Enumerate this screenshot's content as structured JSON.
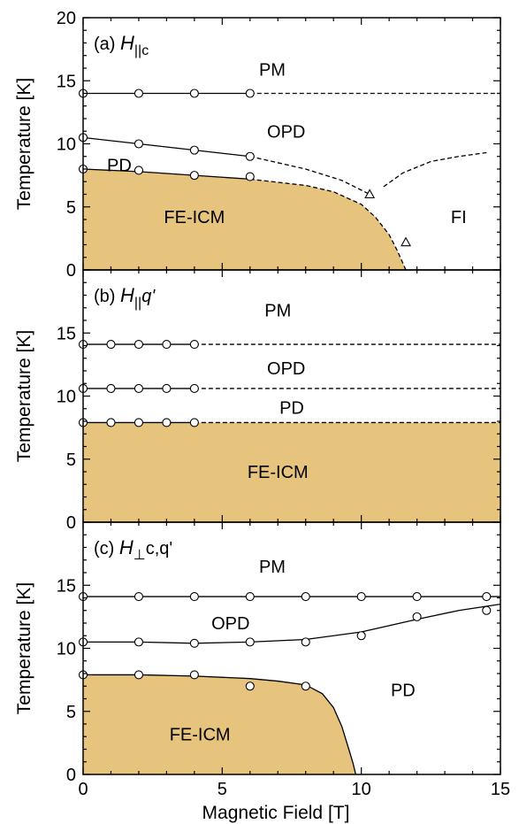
{
  "chart_data": {
    "type": "line",
    "xlabel": "Magnetic Field [T]",
    "x_ticks": [
      "0",
      "5",
      "10",
      "15"
    ],
    "xlim": [
      0,
      15
    ],
    "fill_color": "#e6c47e",
    "panels": [
      {
        "label_prefix": "(a) ",
        "label_italic": "H",
        "label_sub": "||c",
        "label_after": "",
        "ylabel": "Temperature [K]",
        "ylim": [
          0,
          20
        ],
        "y_ticks": [
          "0",
          "5",
          "10",
          "15",
          "20"
        ],
        "regions": [
          {
            "text": "PM",
            "x": 6.8,
            "y": 15.9
          },
          {
            "text": "OPD",
            "x": 7.3,
            "y": 11.0
          },
          {
            "text": "PD",
            "x": 1.3,
            "y": 8.3
          },
          {
            "text": "FE-ICM",
            "x": 4.0,
            "y": 4.2
          },
          {
            "text": "FI",
            "x": 13.5,
            "y": 4.2
          }
        ],
        "fill_boundary": [
          [
            0,
            8.0
          ],
          [
            2,
            7.8
          ],
          [
            4,
            7.5
          ],
          [
            6,
            7.2
          ],
          [
            8,
            6.7
          ],
          [
            9,
            6.2
          ],
          [
            10,
            5.2
          ],
          [
            10.5,
            4.2
          ],
          [
            11,
            2.8
          ],
          [
            11.3,
            1.5
          ],
          [
            11.6,
            0
          ]
        ],
        "lines": [
          {
            "name": "pm-opd-solid",
            "dash": false,
            "points": [
              [
                0,
                14
              ],
              [
                6,
                14
              ]
            ]
          },
          {
            "name": "pm-opd-dashed",
            "dash": true,
            "points": [
              [
                6,
                14
              ],
              [
                15,
                14
              ]
            ]
          },
          {
            "name": "opd-pd-solid",
            "dash": false,
            "points": [
              [
                0,
                10.5
              ],
              [
                2,
                10.0
              ],
              [
                4,
                9.5
              ],
              [
                6,
                9.0
              ]
            ]
          },
          {
            "name": "opd-pd-dashed",
            "dash": true,
            "points": [
              [
                6,
                9.0
              ],
              [
                8,
                8.0
              ],
              [
                9.3,
                7.1
              ],
              [
                10.3,
                6.0
              ]
            ]
          },
          {
            "name": "pd-fe-solid",
            "dash": false,
            "points": [
              [
                0,
                8.0
              ],
              [
                2,
                7.8
              ],
              [
                4,
                7.5
              ],
              [
                6,
                7.2
              ]
            ]
          },
          {
            "name": "pd-fe-dashed",
            "dash": true,
            "points": [
              [
                6,
                7.2
              ],
              [
                8,
                6.7
              ],
              [
                9,
                6.2
              ],
              [
                10,
                5.2
              ],
              [
                10.5,
                4.2
              ],
              [
                11,
                2.8
              ],
              [
                11.3,
                1.5
              ],
              [
                11.6,
                0
              ]
            ]
          },
          {
            "name": "fi-upper-dashed",
            "dash": true,
            "points": [
              [
                10.8,
                6.6
              ],
              [
                11.5,
                7.7
              ],
              [
                12.5,
                8.6
              ],
              [
                13.5,
                9.0
              ],
              [
                14.5,
                9.3
              ]
            ]
          }
        ],
        "circles": [
          [
            0,
            14
          ],
          [
            2,
            14
          ],
          [
            4,
            14
          ],
          [
            6,
            14
          ],
          [
            0,
            10.5
          ],
          [
            2,
            10.0
          ],
          [
            4,
            9.5
          ],
          [
            6,
            9.0
          ],
          [
            0,
            8.0
          ],
          [
            2,
            7.9
          ],
          [
            4,
            7.5
          ],
          [
            6,
            7.4
          ]
        ],
        "triangles": [
          [
            10.3,
            6.0
          ],
          [
            11.6,
            2.2
          ]
        ]
      },
      {
        "label_prefix": "(b) ",
        "label_italic": "H",
        "label_sub": "||",
        "label_after": "q'",
        "ylabel": "Temperature [K]",
        "ylim": [
          0,
          20
        ],
        "y_ticks": [
          "0",
          "5",
          "10",
          "15"
        ],
        "regions": [
          {
            "text": "PM",
            "x": 7.0,
            "y": 16.8
          },
          {
            "text": "OPD",
            "x": 7.3,
            "y": 12.2
          },
          {
            "text": "PD",
            "x": 7.5,
            "y": 9.1
          },
          {
            "text": "FE-ICM",
            "x": 7.0,
            "y": 4.0
          }
        ],
        "fill_boundary": [
          [
            0,
            7.9
          ],
          [
            15,
            7.9
          ]
        ],
        "lines": [
          {
            "name": "pm-opd-solid",
            "dash": false,
            "points": [
              [
                0,
                14.1
              ],
              [
                4,
                14.1
              ]
            ]
          },
          {
            "name": "pm-opd-dashed",
            "dash": true,
            "points": [
              [
                4,
                14.1
              ],
              [
                15,
                14.1
              ]
            ]
          },
          {
            "name": "opd-pd-solid",
            "dash": false,
            "points": [
              [
                0,
                10.6
              ],
              [
                4,
                10.6
              ]
            ]
          },
          {
            "name": "opd-pd-dashed",
            "dash": true,
            "points": [
              [
                4,
                10.6
              ],
              [
                15,
                10.6
              ]
            ]
          },
          {
            "name": "pd-fe-solid",
            "dash": false,
            "points": [
              [
                0,
                7.9
              ],
              [
                4,
                7.9
              ]
            ]
          },
          {
            "name": "pd-fe-dashed",
            "dash": true,
            "points": [
              [
                4,
                7.9
              ],
              [
                15,
                7.9
              ]
            ]
          }
        ],
        "circles": [
          [
            0,
            14.1
          ],
          [
            1,
            14.1
          ],
          [
            2,
            14.1
          ],
          [
            3,
            14.1
          ],
          [
            4,
            14.1
          ],
          [
            0,
            10.6
          ],
          [
            1,
            10.6
          ],
          [
            2,
            10.6
          ],
          [
            3,
            10.6
          ],
          [
            4,
            10.6
          ],
          [
            0,
            7.9
          ],
          [
            1,
            7.9
          ],
          [
            2,
            7.9
          ],
          [
            3,
            7.9
          ],
          [
            4,
            7.9
          ]
        ],
        "triangles": []
      },
      {
        "label_prefix": "(c) ",
        "label_italic": "H",
        "label_sub": "⊥",
        "label_after": "c,q'",
        "ylabel": "Temperature [K]",
        "ylim": [
          0,
          20
        ],
        "y_ticks": [
          "0",
          "5",
          "10",
          "15"
        ],
        "regions": [
          {
            "text": "PM",
            "x": 6.8,
            "y": 16.5
          },
          {
            "text": "OPD",
            "x": 5.3,
            "y": 12.0
          },
          {
            "text": "PD",
            "x": 11.5,
            "y": 6.7
          },
          {
            "text": "FE-ICM",
            "x": 4.2,
            "y": 3.2
          }
        ],
        "fill_boundary": [
          [
            0,
            7.9
          ],
          [
            2,
            7.9
          ],
          [
            4,
            7.8
          ],
          [
            6,
            7.6
          ],
          [
            7,
            7.4
          ],
          [
            8,
            7.1
          ],
          [
            8.6,
            6.4
          ],
          [
            9.0,
            5.3
          ],
          [
            9.3,
            3.8
          ],
          [
            9.55,
            2.0
          ],
          [
            9.7,
            0.9
          ],
          [
            9.8,
            0
          ]
        ],
        "lines": [
          {
            "name": "pm-opd-solid",
            "dash": false,
            "points": [
              [
                0,
                14.1
              ],
              [
                15,
                14.1
              ]
            ]
          },
          {
            "name": "opd-pd-solid",
            "dash": false,
            "points": [
              [
                0,
                10.5
              ],
              [
                2,
                10.5
              ],
              [
                4,
                10.4
              ],
              [
                6,
                10.5
              ],
              [
                8,
                10.7
              ],
              [
                10,
                11.3
              ],
              [
                12,
                12.3
              ],
              [
                13.5,
                13.0
              ],
              [
                15,
                13.5
              ]
            ]
          },
          {
            "name": "pd-fe-solid",
            "dash": false,
            "points": [
              [
                0,
                7.9
              ],
              [
                2,
                7.9
              ],
              [
                4,
                7.8
              ],
              [
                6,
                7.6
              ],
              [
                7,
                7.4
              ],
              [
                8,
                7.1
              ],
              [
                8.6,
                6.4
              ],
              [
                9.0,
                5.3
              ],
              [
                9.3,
                3.8
              ],
              [
                9.55,
                2.0
              ],
              [
                9.7,
                0.9
              ],
              [
                9.8,
                0
              ]
            ]
          }
        ],
        "circles": [
          [
            0,
            14.1
          ],
          [
            2,
            14.1
          ],
          [
            4,
            14.1
          ],
          [
            6,
            14.1
          ],
          [
            8,
            14.1
          ],
          [
            10,
            14.1
          ],
          [
            12,
            14.1
          ],
          [
            14.5,
            14.1
          ],
          [
            0,
            10.5
          ],
          [
            2,
            10.5
          ],
          [
            4,
            10.4
          ],
          [
            6,
            10.5
          ],
          [
            8,
            10.5
          ],
          [
            10,
            11.0
          ],
          [
            12,
            12.5
          ],
          [
            14.5,
            13.0
          ],
          [
            0,
            7.9
          ],
          [
            2,
            7.9
          ],
          [
            4,
            7.9
          ],
          [
            6,
            7.0
          ],
          [
            8,
            7.0
          ]
        ],
        "triangles": []
      }
    ]
  }
}
